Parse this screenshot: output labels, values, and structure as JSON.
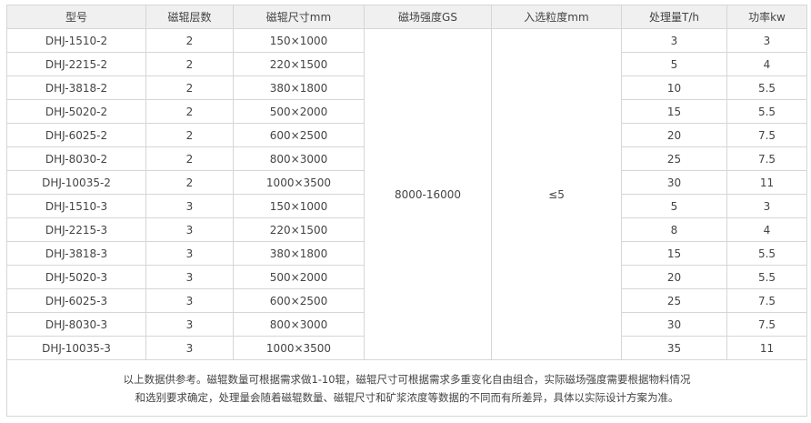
{
  "headers": [
    "型号",
    "磁辊层数",
    "磁辊尺寸mm",
    "磁场强度GS",
    "入选粒度mm",
    "处理量T/h",
    "功率kw"
  ],
  "field_strength": "8000-16000",
  "feed_size": "≤5",
  "rows": [
    [
      "DHJ-1510-2",
      "2",
      "150×1000",
      "3",
      "3"
    ],
    [
      "DHJ-2215-2",
      "2",
      "220×1500",
      "5",
      "4"
    ],
    [
      "DHJ-3818-2",
      "2",
      "380×1800",
      "10",
      "5.5"
    ],
    [
      "DHJ-5020-2",
      "2",
      "500×2000",
      "15",
      "5.5"
    ],
    [
      "DHJ-6025-2",
      "2",
      "600×2500",
      "20",
      "7.5"
    ],
    [
      "DHJ-8030-2",
      "2",
      "800×3000",
      "25",
      "7.5"
    ],
    [
      "DHJ-10035-2",
      "2",
      "1000×3500",
      "30",
      "11"
    ],
    [
      "DHJ-1510-3",
      "3",
      "150×1000",
      "5",
      "3"
    ],
    [
      "DHJ-2215-3",
      "3",
      "220×1500",
      "8",
      "4"
    ],
    [
      "DHJ-3818-3",
      "3",
      "380×1800",
      "15",
      "5.5"
    ],
    [
      "DHJ-5020-3",
      "3",
      "500×2000",
      "20",
      "5.5"
    ],
    [
      "DHJ-6025-3",
      "3",
      "600×2500",
      "25",
      "7.5"
    ],
    [
      "DHJ-8030-3",
      "3",
      "800×3000",
      "30",
      "7.5"
    ],
    [
      "DHJ-10035-3",
      "3",
      "1000×3500",
      "35",
      "11"
    ]
  ],
  "note": "以上数据供参考。磁辊数量可根据需求做1-10辊，磁辊尺寸可根据需求多重变化自由组合，实际磁场强度需要根据物料情况和选别要求确定，处理量会随着磁辊数量、磁辊尺寸和矿浆浓度等数据的不同而有所差异，具体以实际设计方案为准。"
}
